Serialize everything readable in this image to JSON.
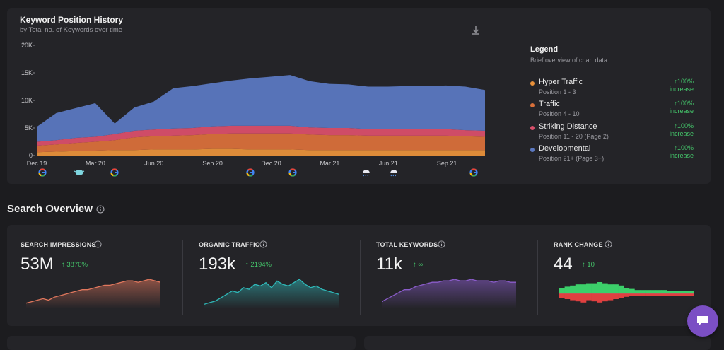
{
  "history": {
    "title": "Keyword Position History",
    "subtitle": "by Total no. of Keywords over time",
    "legend": {
      "title": "Legend",
      "subtitle": "Brief overview of chart data",
      "items": [
        {
          "name": "Hyper Traffic",
          "range": "Position 1 - 3",
          "change": "↑100%",
          "tag": "increase",
          "color": "#e8913a"
        },
        {
          "name": "Traffic",
          "range": "Position 4 - 10",
          "change": "↑100%",
          "tag": "increase",
          "color": "#d9703a"
        },
        {
          "name": "Striking Distance",
          "range": "Position 11 - 20 (Page 2)",
          "change": "↑100%",
          "tag": "increase",
          "color": "#d94f6a"
        },
        {
          "name": "Developmental",
          "range": "Position 21+ (Page 3+)",
          "change": "↑100%",
          "tag": "increase",
          "color": "#5b78c0"
        }
      ]
    },
    "annotation_icons": [
      "google-icon",
      "mask-icon",
      "google-icon",
      "google-icon",
      "google-icon",
      "weather-icon",
      "weather-icon",
      "google-icon"
    ]
  },
  "chart_data": [
    {
      "type": "area",
      "title": "Keyword Position History",
      "subtitle": "by Total no. of Keywords over time",
      "ylim": [
        0,
        20000
      ],
      "y_ticks": [
        "0",
        "5K",
        "10K",
        "15K",
        "20K"
      ],
      "x_ticks": [
        "Dec 19",
        "Mar 20",
        "Jun 20",
        "Sep 20",
        "Dec 20",
        "Mar 21",
        "Jun 21",
        "Sep 21"
      ],
      "stacked": true,
      "series": [
        {
          "name": "Hyper Traffic",
          "color": "#e8913a",
          "values": [
            600,
            700,
            800,
            900,
            1000,
            1000,
            1100,
            1100,
            1100,
            1200,
            1200,
            1100,
            1100,
            1100,
            1000,
            1000,
            1000,
            1000,
            1000,
            1000,
            1000,
            1000,
            1000,
            1000
          ]
        },
        {
          "name": "Traffic",
          "color": "#d9703a",
          "values": [
            1200,
            1300,
            1500,
            1600,
            1800,
            2300,
            2400,
            2500,
            2600,
            2700,
            2800,
            2900,
            2900,
            2900,
            2800,
            2700,
            2700,
            2600,
            2600,
            2600,
            2600,
            2600,
            2500,
            2400
          ]
        },
        {
          "name": "Striking Distance",
          "color": "#d94f6a",
          "values": [
            700,
            800,
            900,
            900,
            1100,
            1200,
            1200,
            1300,
            1300,
            1400,
            1400,
            1400,
            1400,
            1400,
            1300,
            1300,
            1300,
            1200,
            1200,
            1200,
            1200,
            1200,
            1100,
            1100
          ]
        },
        {
          "name": "Developmental",
          "color": "#5b78c0",
          "values": [
            2700,
            4900,
            5400,
            6100,
            1900,
            4200,
            5100,
            7300,
            7600,
            7800,
            8200,
            8600,
            8900,
            9200,
            8400,
            8000,
            7900,
            7700,
            7700,
            7800,
            7800,
            7900,
            7900,
            7400
          ]
        }
      ]
    },
    {
      "type": "area",
      "title": "SEARCH IMPRESSIONS",
      "series": [
        {
          "name": "impressions",
          "color": "#e0775d",
          "values": [
            3,
            4,
            5,
            6,
            5,
            7,
            8,
            9,
            10,
            11,
            12,
            12,
            13,
            14,
            15,
            15,
            16,
            17,
            18,
            18,
            17,
            18,
            19,
            18,
            17
          ]
        }
      ]
    },
    {
      "type": "area",
      "title": "ORGANIC TRAFFIC",
      "series": [
        {
          "name": "traffic",
          "color": "#2fb8b8",
          "values": [
            2,
            3,
            4,
            6,
            8,
            10,
            9,
            12,
            11,
            14,
            13,
            15,
            12,
            16,
            14,
            13,
            15,
            17,
            14,
            12,
            13,
            11,
            10,
            9,
            8
          ]
        }
      ]
    },
    {
      "type": "area",
      "title": "TOTAL KEYWORDS",
      "series": [
        {
          "name": "keywords",
          "color": "#8a5cc9",
          "values": [
            4,
            6,
            8,
            10,
            12,
            12,
            14,
            15,
            16,
            17,
            17,
            18,
            18,
            19,
            18,
            18,
            19,
            18,
            18,
            18,
            17,
            18,
            18,
            17,
            17
          ]
        }
      ]
    },
    {
      "type": "bar",
      "title": "RANK CHANGE",
      "series": [
        {
          "name": "gains",
          "color": "#3ccf6a",
          "values": [
            5,
            6,
            7,
            8,
            8,
            9,
            9,
            10,
            9,
            8,
            8,
            7,
            5,
            4,
            3,
            3,
            3,
            3,
            3,
            3,
            2,
            2,
            2,
            2,
            2
          ]
        },
        {
          "name": "losses",
          "color": "#e04040",
          "values": [
            4,
            5,
            6,
            7,
            8,
            6,
            7,
            8,
            7,
            6,
            5,
            4,
            3,
            2,
            2,
            2,
            2,
            2,
            2,
            2,
            2,
            2,
            2,
            2,
            2
          ]
        }
      ]
    }
  ],
  "overview": {
    "title": "Search Overview",
    "metrics": [
      {
        "label": "SEARCH IMPRESSIONS",
        "value": "53M",
        "delta": "↑ 3870%"
      },
      {
        "label": "ORGANIC TRAFFIC",
        "value": "193k",
        "delta": "↑ 2194%"
      },
      {
        "label": "TOTAL KEYWORDS",
        "value": "11k",
        "delta": "↑ ∞"
      },
      {
        "label": "RANK CHANGE",
        "value": "44",
        "delta": "↑ 10"
      }
    ]
  }
}
